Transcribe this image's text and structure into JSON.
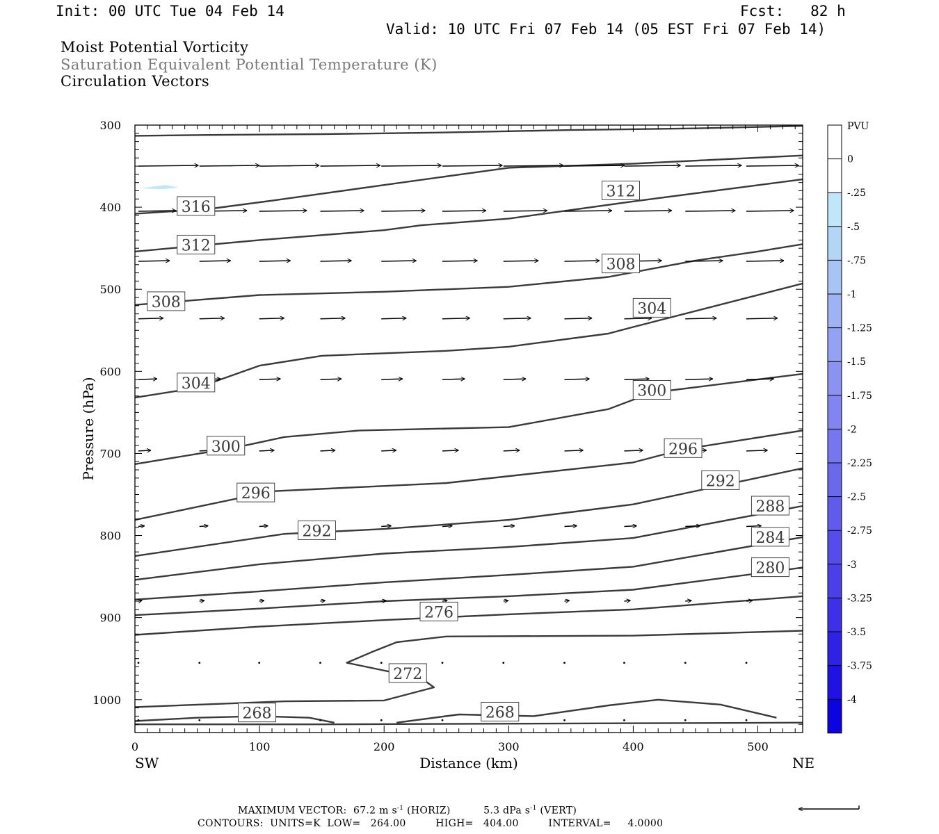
{
  "header": {
    "init": "Init: 00 UTC Tue 04 Feb 14",
    "fcst": "Fcst:   82 h",
    "valid": "Valid: 10 UTC Fri 07 Feb 14 (05 EST Fri 07 Feb 14)"
  },
  "titles": {
    "line1": "Moist Potential Vorticity",
    "line2": "Saturation Equivalent Potential Temperature (K)",
    "line3": "Circulation Vectors"
  },
  "footer": {
    "max_vector_label": "MAXIMUM VECTOR:",
    "max_vector_horiz": "67.2 m s",
    "horiz_tag": "(HORIZ)",
    "max_vector_vert": "5.3 dPa s",
    "vert_tag": "(VERT)",
    "exponent": "-1",
    "contours": "CONTOURS:  UNITS=K  LOW=   264.00         HIGH=   404.00         INTERVAL=     4.0000"
  },
  "chart_data": {
    "type": "cross-section",
    "xlabel": "Distance (km)",
    "ylabel": "Pressure (hPa)",
    "x_range": [
      0,
      536
    ],
    "y_range": [
      300,
      1040
    ],
    "x_ticks": [
      0,
      100,
      200,
      300,
      400,
      500
    ],
    "y_ticks": [
      300,
      400,
      500,
      600,
      700,
      800,
      900,
      1000
    ],
    "x_end_labels": {
      "left": "SW",
      "right": "NE"
    },
    "colorbar": {
      "unit": "PVU",
      "labels": [
        "0",
        "-.25",
        "-.5",
        "-.75",
        "-1",
        "-1.25",
        "-1.5",
        "-1.75",
        "-2",
        "-2.25",
        "-2.5",
        "-2.75",
        "-3",
        "-3.25",
        "-3.5",
        "-3.75",
        "-4"
      ],
      "colors": [
        "#ffffff",
        "#ffffff",
        "#bfe6fb",
        "#b3d6f7",
        "#a8c4f5",
        "#9eb2f4",
        "#94a2f3",
        "#8a93f2",
        "#8085f1",
        "#7677f0",
        "#6a69ee",
        "#5f5bed",
        "#544deb",
        "#4940ea",
        "#3c31e8",
        "#2e22e6",
        "#1f12e4",
        "#0c02e2"
      ]
    },
    "theta_es_contours": [
      {
        "value": 316,
        "label": "316",
        "label_at": [
          49,
          399
        ],
        "points": [
          [
            0,
            408
          ],
          [
            60,
            402
          ],
          [
            110,
            392
          ],
          [
            200,
            373
          ],
          [
            300,
            352
          ],
          [
            400,
            347
          ],
          [
            536,
            337
          ]
        ]
      },
      {
        "value": null,
        "points": [
          [
            0,
            313
          ],
          [
            60,
            312
          ],
          [
            150,
            311
          ],
          [
            250,
            309
          ],
          [
            350,
            306
          ],
          [
            450,
            304
          ],
          [
            536,
            301
          ]
        ]
      },
      {
        "value": 312,
        "label": "312",
        "label_at": [
          49,
          446
        ],
        "points": [
          [
            0,
            454
          ],
          [
            100,
            440
          ],
          [
            200,
            428
          ],
          [
            230,
            422
          ],
          [
            300,
            414
          ],
          [
            400,
            393
          ],
          [
            536,
            366
          ]
        ]
      },
      {
        "value": 312,
        "label": "312",
        "label_at": [
          390,
          380
        ],
        "points": []
      },
      {
        "value": 308,
        "label": "308",
        "label_at": [
          25,
          515
        ],
        "points": [
          [
            0,
            519
          ],
          [
            100,
            507
          ],
          [
            200,
            503
          ],
          [
            300,
            497
          ],
          [
            380,
            485
          ],
          [
            450,
            465
          ],
          [
            500,
            454
          ],
          [
            536,
            445
          ]
        ]
      },
      {
        "value": 308,
        "label": "308",
        "label_at": [
          390,
          469
        ],
        "points": []
      },
      {
        "value": 304,
        "label": "304",
        "label_at": [
          49,
          614
        ],
        "points": [
          [
            0,
            632
          ],
          [
            50,
            620
          ],
          [
            100,
            593
          ],
          [
            150,
            581
          ],
          [
            250,
            575
          ],
          [
            300,
            570
          ],
          [
            380,
            554
          ],
          [
            400,
            546
          ],
          [
            536,
            493
          ]
        ]
      },
      {
        "value": 304,
        "label": "304",
        "label_at": [
          415,
          523
        ],
        "points": []
      },
      {
        "value": 300,
        "label": "300",
        "label_at": [
          73,
          691
        ],
        "points": [
          [
            0,
            713
          ],
          [
            80,
            693
          ],
          [
            120,
            680
          ],
          [
            180,
            672
          ],
          [
            300,
            668
          ],
          [
            380,
            646
          ],
          [
            415,
            626
          ],
          [
            536,
            603
          ]
        ]
      },
      {
        "value": 300,
        "label": "300",
        "label_at": [
          415,
          623
        ],
        "points": []
      },
      {
        "value": 296,
        "label": "296",
        "label_at": [
          97,
          748
        ],
        "points": [
          [
            0,
            781
          ],
          [
            110,
            746
          ],
          [
            250,
            736
          ],
          [
            400,
            711
          ],
          [
            440,
            695
          ],
          [
            536,
            672
          ]
        ]
      },
      {
        "value": 296,
        "label": "296",
        "label_at": [
          440,
          694
        ],
        "points": []
      },
      {
        "value": 292,
        "label": "292",
        "label_at": [
          146,
          794
        ],
        "points": [
          [
            0,
            825
          ],
          [
            120,
            798
          ],
          [
            200,
            792
          ],
          [
            300,
            781
          ],
          [
            400,
            762
          ],
          [
            536,
            718
          ]
        ]
      },
      {
        "value": 292,
        "label": "292",
        "label_at": [
          470,
          733
        ],
        "points": []
      },
      {
        "value": 288,
        "label": "288",
        "label_at": [
          510,
          764
        ],
        "points": [
          [
            0,
            854
          ],
          [
            100,
            835
          ],
          [
            200,
            822
          ],
          [
            300,
            814
          ],
          [
            400,
            803
          ],
          [
            536,
            764
          ]
        ]
      },
      {
        "value": 284,
        "label": "284",
        "label_at": [
          510,
          802
        ],
        "points": [
          [
            0,
            878
          ],
          [
            100,
            868
          ],
          [
            200,
            857
          ],
          [
            300,
            848
          ],
          [
            400,
            838
          ],
          [
            536,
            802
          ]
        ]
      },
      {
        "value": 280,
        "label": "280",
        "label_at": [
          510,
          839
        ],
        "points": [
          [
            0,
            897
          ],
          [
            100,
            889
          ],
          [
            200,
            880
          ],
          [
            300,
            874
          ],
          [
            400,
            866
          ],
          [
            536,
            839
          ]
        ]
      },
      {
        "value": 276,
        "label": "276",
        "label_at": [
          244,
          893
        ],
        "points": [
          [
            0,
            921
          ],
          [
            100,
            911
          ],
          [
            200,
            903
          ],
          [
            300,
            896
          ],
          [
            400,
            890
          ],
          [
            536,
            874
          ]
        ]
      },
      {
        "value": 272,
        "label": "272",
        "label_at": [
          219,
          968
        ],
        "points": [
          [
            0,
            1009
          ],
          [
            120,
            1002
          ],
          [
            200,
            1001
          ],
          [
            240,
            985
          ],
          [
            230,
            974
          ],
          [
            170,
            955
          ],
          [
            190,
            942
          ],
          [
            210,
            930
          ],
          [
            250,
            923
          ],
          [
            400,
            922
          ],
          [
            536,
            916
          ]
        ]
      },
      {
        "value": 268,
        "label": "268",
        "label_at": [
          98,
          1016
        ],
        "points": [
          [
            0,
            1026
          ],
          [
            50,
            1022
          ],
          [
            100,
            1020
          ],
          [
            140,
            1022
          ],
          [
            160,
            1028
          ]
        ]
      },
      {
        "value": 268,
        "label": "268",
        "label_at": [
          293,
          1015
        ],
        "points": [
          [
            210,
            1028
          ],
          [
            260,
            1018
          ],
          [
            320,
            1020
          ],
          [
            380,
            1007
          ],
          [
            420,
            1000
          ],
          [
            470,
            1006
          ],
          [
            515,
            1022
          ]
        ]
      },
      {
        "value": null,
        "points": [
          [
            0,
            1030
          ],
          [
            150,
            1030
          ],
          [
            536,
            1028
          ]
        ]
      }
    ],
    "pv_patches": [
      {
        "pvu": -0.25,
        "points": [
          [
            3,
            377
          ],
          [
            25,
            373
          ],
          [
            35,
            376
          ],
          [
            22,
            378
          ]
        ]
      },
      {
        "pvu": -0.25,
        "points": [
          [
            70,
            350
          ],
          [
            80,
            349
          ],
          [
            78,
            351
          ]
        ]
      },
      {
        "pvu": -0.25,
        "points": [
          [
            115,
            350
          ],
          [
            130,
            349
          ],
          [
            125,
            351
          ]
        ]
      }
    ],
    "vector_rows": [
      {
        "p": 350,
        "xs": [
          0,
          49,
          97,
          146,
          195,
          244,
          293,
          342,
          390,
          439,
          488
        ],
        "dx": [
          48,
          48,
          48,
          48,
          48,
          48,
          48,
          48,
          45,
          45,
          42
        ]
      },
      {
        "p": 405,
        "xs": [
          0,
          49,
          97,
          146,
          195,
          244,
          293,
          342,
          390,
          439,
          488
        ],
        "dx": [
          30,
          38,
          38,
          35,
          35,
          35,
          35,
          38,
          38,
          40,
          38
        ]
      },
      {
        "p": 466,
        "xs": [
          0,
          49,
          97,
          146,
          195,
          244,
          293,
          342,
          390,
          439,
          488
        ],
        "dx": [
          25,
          25,
          25,
          25,
          28,
          28,
          28,
          28,
          30,
          30,
          30
        ]
      },
      {
        "p": 536,
        "xs": [
          0,
          49,
          97,
          146,
          195,
          244,
          293,
          342,
          390,
          439,
          488
        ],
        "dx": [
          20,
          20,
          20,
          20,
          20,
          22,
          22,
          22,
          22,
          25,
          25
        ]
      },
      {
        "p": 610,
        "xs": [
          0,
          49,
          97,
          146,
          195,
          244,
          293,
          342,
          390,
          439,
          488
        ],
        "dx": [
          15,
          17,
          17,
          17,
          17,
          18,
          18,
          20,
          20,
          22,
          22
        ]
      },
      {
        "p": 697,
        "xs": [
          0,
          49,
          97,
          146,
          195,
          244,
          293,
          342,
          390,
          439,
          488
        ],
        "dx": [
          10,
          12,
          12,
          12,
          12,
          13,
          13,
          15,
          15,
          17,
          17
        ]
      },
      {
        "p": 789,
        "xs": [
          0,
          49,
          97,
          146,
          195,
          244,
          293,
          342,
          390,
          439,
          488
        ],
        "dx": [
          5,
          7,
          7,
          7,
          8,
          8,
          9,
          10,
          10,
          12,
          12
        ]
      },
      {
        "p": 880,
        "xs": [
          0,
          49,
          97,
          146,
          195,
          244,
          293,
          342,
          390,
          439,
          488
        ],
        "dx": [
          3,
          4,
          4,
          4,
          4,
          4,
          4,
          4,
          5,
          5,
          5
        ]
      },
      {
        "p": 955,
        "xs": [
          0,
          49,
          97,
          146,
          195,
          244,
          293,
          342,
          390,
          439,
          488
        ],
        "dx": [
          0,
          0,
          0,
          0,
          0,
          0,
          0,
          0,
          0,
          0,
          0
        ]
      },
      {
        "p": 1025,
        "xs": [
          0,
          49,
          97,
          146,
          195,
          244,
          293,
          342,
          390,
          439,
          488
        ],
        "dx": [
          0,
          0,
          0,
          0,
          0,
          0,
          0,
          0,
          0,
          0,
          0
        ]
      }
    ]
  }
}
